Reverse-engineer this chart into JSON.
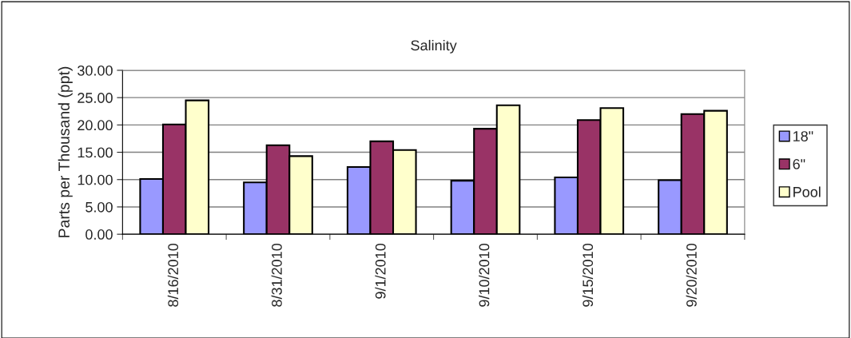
{
  "chart_data": {
    "type": "bar",
    "title": "Salinity",
    "ylabel": "Parts per Thousand (ppt)",
    "categories": [
      "8/16/2010",
      "8/31/2010",
      "9/1/2010",
      "9/10/2010",
      "9/15/2010",
      "9/20/2010"
    ],
    "series": [
      {
        "name": "18\"",
        "color": "#9999ff",
        "values": [
          10.1,
          9.5,
          12.3,
          9.8,
          10.4,
          9.9
        ]
      },
      {
        "name": "6\"",
        "color": "#993366",
        "values": [
          20.1,
          16.3,
          17.0,
          19.3,
          20.9,
          22.0
        ]
      },
      {
        "name": "Pool",
        "color": "#ffffcc",
        "values": [
          24.5,
          14.3,
          15.4,
          23.6,
          23.1,
          22.6
        ]
      }
    ],
    "ylim": [
      0,
      30
    ],
    "yticks": [
      {
        "value": 0,
        "label": "0.00"
      },
      {
        "value": 5,
        "label": "5.00"
      },
      {
        "value": 10,
        "label": "10.00"
      },
      {
        "value": 15,
        "label": "15.00"
      },
      {
        "value": 20,
        "label": "20.00"
      },
      {
        "value": 25,
        "label": "25.00"
      },
      {
        "value": 30,
        "label": "30.00"
      }
    ],
    "grid": "y",
    "legend": "right"
  }
}
